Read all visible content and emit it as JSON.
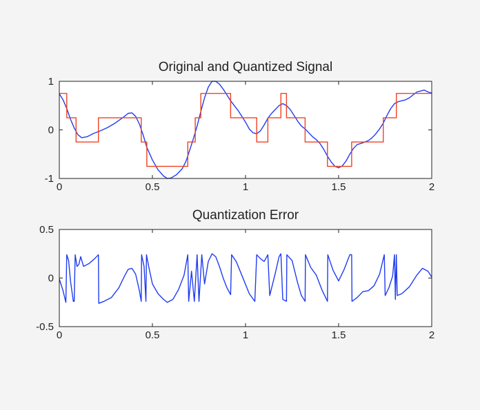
{
  "chart_data": [
    {
      "type": "line",
      "title": "Original and Quantized Signal",
      "xlabel": "",
      "ylabel": "",
      "xlim": [
        0,
        2
      ],
      "ylim": [
        -1,
        1
      ],
      "x_ticks": [
        "0",
        "0.5",
        "1",
        "1.5",
        "2"
      ],
      "y_ticks": [
        "1",
        "0",
        "-1"
      ],
      "grid": false,
      "legend": "none",
      "series": [
        {
          "color": "#1f3cf0",
          "points": [
            [
              0.0,
              0.74
            ],
            [
              0.02,
              0.62
            ],
            [
              0.04,
              0.44
            ],
            [
              0.06,
              0.22
            ],
            [
              0.08,
              0.04
            ],
            [
              0.1,
              -0.1
            ],
            [
              0.12,
              -0.16
            ],
            [
              0.15,
              -0.14
            ],
            [
              0.18,
              -0.08
            ],
            [
              0.22,
              -0.02
            ],
            [
              0.26,
              0.05
            ],
            [
              0.3,
              0.14
            ],
            [
              0.34,
              0.25
            ],
            [
              0.37,
              0.34
            ],
            [
              0.39,
              0.35
            ],
            [
              0.41,
              0.28
            ],
            [
              0.43,
              0.12
            ],
            [
              0.45,
              -0.1
            ],
            [
              0.47,
              -0.36
            ],
            [
              0.5,
              -0.62
            ],
            [
              0.53,
              -0.82
            ],
            [
              0.56,
              -0.95
            ],
            [
              0.58,
              -1.0
            ],
            [
              0.6,
              -0.99
            ],
            [
              0.63,
              -0.92
            ],
            [
              0.66,
              -0.8
            ],
            [
              0.68,
              -0.65
            ],
            [
              0.7,
              -0.42
            ],
            [
              0.72,
              -0.18
            ],
            [
              0.74,
              0.08
            ],
            [
              0.76,
              0.38
            ],
            [
              0.78,
              0.66
            ],
            [
              0.8,
              0.88
            ],
            [
              0.82,
              1.0
            ],
            [
              0.84,
              1.0
            ],
            [
              0.86,
              0.94
            ],
            [
              0.88,
              0.84
            ],
            [
              0.9,
              0.72
            ],
            [
              0.92,
              0.6
            ],
            [
              0.94,
              0.5
            ],
            [
              0.96,
              0.4
            ],
            [
              0.98,
              0.28
            ],
            [
              1.0,
              0.16
            ],
            [
              1.02,
              0.02
            ],
            [
              1.04,
              -0.06
            ],
            [
              1.06,
              -0.08
            ],
            [
              1.08,
              -0.02
            ],
            [
              1.1,
              0.1
            ],
            [
              1.12,
              0.24
            ],
            [
              1.14,
              0.34
            ],
            [
              1.16,
              0.42
            ],
            [
              1.18,
              0.5
            ],
            [
              1.2,
              0.54
            ],
            [
              1.22,
              0.5
            ],
            [
              1.24,
              0.42
            ],
            [
              1.26,
              0.3
            ],
            [
              1.28,
              0.18
            ],
            [
              1.3,
              0.08
            ],
            [
              1.32,
              0.02
            ],
            [
              1.34,
              -0.06
            ],
            [
              1.36,
              -0.14
            ],
            [
              1.38,
              -0.2
            ],
            [
              1.4,
              -0.28
            ],
            [
              1.42,
              -0.4
            ],
            [
              1.44,
              -0.54
            ],
            [
              1.46,
              -0.66
            ],
            [
              1.48,
              -0.75
            ],
            [
              1.5,
              -0.78
            ],
            [
              1.52,
              -0.74
            ],
            [
              1.54,
              -0.64
            ],
            [
              1.56,
              -0.5
            ],
            [
              1.58,
              -0.38
            ],
            [
              1.6,
              -0.3
            ],
            [
              1.62,
              -0.28
            ],
            [
              1.64,
              -0.25
            ],
            [
              1.66,
              -0.22
            ],
            [
              1.68,
              -0.16
            ],
            [
              1.7,
              -0.08
            ],
            [
              1.72,
              0.02
            ],
            [
              1.74,
              0.14
            ],
            [
              1.76,
              0.3
            ],
            [
              1.78,
              0.44
            ],
            [
              1.8,
              0.54
            ],
            [
              1.82,
              0.58
            ],
            [
              1.84,
              0.6
            ],
            [
              1.86,
              0.62
            ],
            [
              1.88,
              0.66
            ],
            [
              1.9,
              0.72
            ],
            [
              1.92,
              0.78
            ],
            [
              1.94,
              0.8
            ],
            [
              1.96,
              0.82
            ],
            [
              1.98,
              0.78
            ],
            [
              2.0,
              0.76
            ]
          ]
        },
        {
          "color": "#f04020",
          "step": true,
          "levels": [
            [
              0.0,
              0.04,
              0.75
            ],
            [
              0.04,
              0.09,
              0.25
            ],
            [
              0.09,
              0.21,
              -0.25
            ],
            [
              0.21,
              0.44,
              0.25
            ],
            [
              0.44,
              0.47,
              -0.25
            ],
            [
              0.47,
              0.69,
              -0.75
            ],
            [
              0.69,
              0.73,
              -0.25
            ],
            [
              0.73,
              0.76,
              0.25
            ],
            [
              0.76,
              0.92,
              0.75
            ],
            [
              0.92,
              1.06,
              0.25
            ],
            [
              1.06,
              1.12,
              -0.25
            ],
            [
              1.12,
              1.19,
              0.25
            ],
            [
              1.19,
              1.22,
              0.75
            ],
            [
              1.22,
              1.32,
              0.25
            ],
            [
              1.32,
              1.44,
              -0.25
            ],
            [
              1.44,
              1.57,
              -0.75
            ],
            [
              1.57,
              1.74,
              -0.25
            ],
            [
              1.74,
              1.81,
              0.25
            ],
            [
              1.81,
              2.0,
              0.75
            ]
          ]
        }
      ]
    },
    {
      "type": "line",
      "title": "Quantization Error",
      "xlabel": "",
      "ylabel": "",
      "xlim": [
        0,
        2
      ],
      "ylim": [
        -0.5,
        0.5
      ],
      "x_ticks": [
        "0",
        "0.5",
        "1",
        "1.5",
        "2"
      ],
      "y_ticks": [
        "0.5",
        "0",
        "-0.5"
      ],
      "grid": false,
      "legend": "none",
      "series": [
        {
          "color": "#1f3cf0",
          "points": [
            [
              0.0,
              -0.01
            ],
            [
              0.02,
              -0.13
            ],
            [
              0.035,
              -0.25
            ],
            [
              0.04,
              0.24
            ],
            [
              0.05,
              0.18
            ],
            [
              0.06,
              -0.03
            ],
            [
              0.075,
              -0.24
            ],
            [
              0.08,
              -0.24
            ],
            [
              0.085,
              0.24
            ],
            [
              0.095,
              0.12
            ],
            [
              0.105,
              0.14
            ],
            [
              0.115,
              0.22
            ],
            [
              0.13,
              0.12
            ],
            [
              0.16,
              0.15
            ],
            [
              0.19,
              0.2
            ],
            [
              0.21,
              0.24
            ],
            [
              0.212,
              -0.26
            ],
            [
              0.24,
              -0.24
            ],
            [
              0.28,
              -0.2
            ],
            [
              0.32,
              -0.1
            ],
            [
              0.35,
              0.02
            ],
            [
              0.37,
              0.09
            ],
            [
              0.39,
              0.1
            ],
            [
              0.41,
              0.04
            ],
            [
              0.43,
              -0.13
            ],
            [
              0.44,
              -0.24
            ],
            [
              0.442,
              0.24
            ],
            [
              0.455,
              0.12
            ],
            [
              0.465,
              -0.24
            ],
            [
              0.468,
              0.24
            ],
            [
              0.48,
              0.12
            ],
            [
              0.5,
              -0.06
            ],
            [
              0.53,
              -0.16
            ],
            [
              0.56,
              -0.22
            ],
            [
              0.58,
              -0.25
            ],
            [
              0.61,
              -0.22
            ],
            [
              0.64,
              -0.12
            ],
            [
              0.67,
              0.03
            ],
            [
              0.69,
              0.24
            ],
            [
              0.695,
              -0.24
            ],
            [
              0.71,
              0.07
            ],
            [
              0.725,
              -0.24
            ],
            [
              0.74,
              0.24
            ],
            [
              0.75,
              -0.24
            ],
            [
              0.765,
              0.24
            ],
            [
              0.78,
              -0.06
            ],
            [
              0.8,
              0.17
            ],
            [
              0.82,
              0.25
            ],
            [
              0.84,
              0.22
            ],
            [
              0.86,
              0.12
            ],
            [
              0.88,
              0.0
            ],
            [
              0.9,
              -0.1
            ],
            [
              0.92,
              -0.17
            ],
            [
              0.925,
              0.24
            ],
            [
              0.95,
              0.17
            ],
            [
              0.98,
              0.03
            ],
            [
              1.02,
              -0.16
            ],
            [
              1.05,
              -0.24
            ],
            [
              1.06,
              0.24
            ],
            [
              1.08,
              0.2
            ],
            [
              1.1,
              0.17
            ],
            [
              1.12,
              0.24
            ],
            [
              1.13,
              -0.18
            ],
            [
              1.16,
              0.05
            ],
            [
              1.18,
              0.22
            ],
            [
              1.19,
              0.25
            ],
            [
              1.2,
              -0.22
            ],
            [
              1.22,
              -0.24
            ],
            [
              1.222,
              0.24
            ],
            [
              1.25,
              0.18
            ],
            [
              1.28,
              -0.05
            ],
            [
              1.3,
              -0.18
            ],
            [
              1.32,
              -0.24
            ],
            [
              1.322,
              0.24
            ],
            [
              1.35,
              0.11
            ],
            [
              1.38,
              0.03
            ],
            [
              1.41,
              -0.12
            ],
            [
              1.44,
              -0.24
            ],
            [
              1.442,
              0.24
            ],
            [
              1.47,
              0.08
            ],
            [
              1.5,
              -0.03
            ],
            [
              1.53,
              0.09
            ],
            [
              1.56,
              0.24
            ],
            [
              1.57,
              0.24
            ],
            [
              1.572,
              -0.24
            ],
            [
              1.6,
              -0.2
            ],
            [
              1.63,
              -0.14
            ],
            [
              1.66,
              -0.13
            ],
            [
              1.69,
              -0.08
            ],
            [
              1.72,
              0.04
            ],
            [
              1.745,
              0.24
            ],
            [
              1.75,
              -0.18
            ],
            [
              1.77,
              -0.1
            ],
            [
              1.79,
              0.02
            ],
            [
              1.8,
              0.24
            ],
            [
              1.805,
              -0.22
            ],
            [
              1.81,
              0.24
            ],
            [
              1.815,
              -0.18
            ],
            [
              1.84,
              -0.16
            ],
            [
              1.88,
              -0.09
            ],
            [
              1.92,
              0.03
            ],
            [
              1.95,
              0.1
            ],
            [
              1.98,
              0.07
            ],
            [
              2.0,
              0.01
            ]
          ]
        }
      ]
    }
  ]
}
